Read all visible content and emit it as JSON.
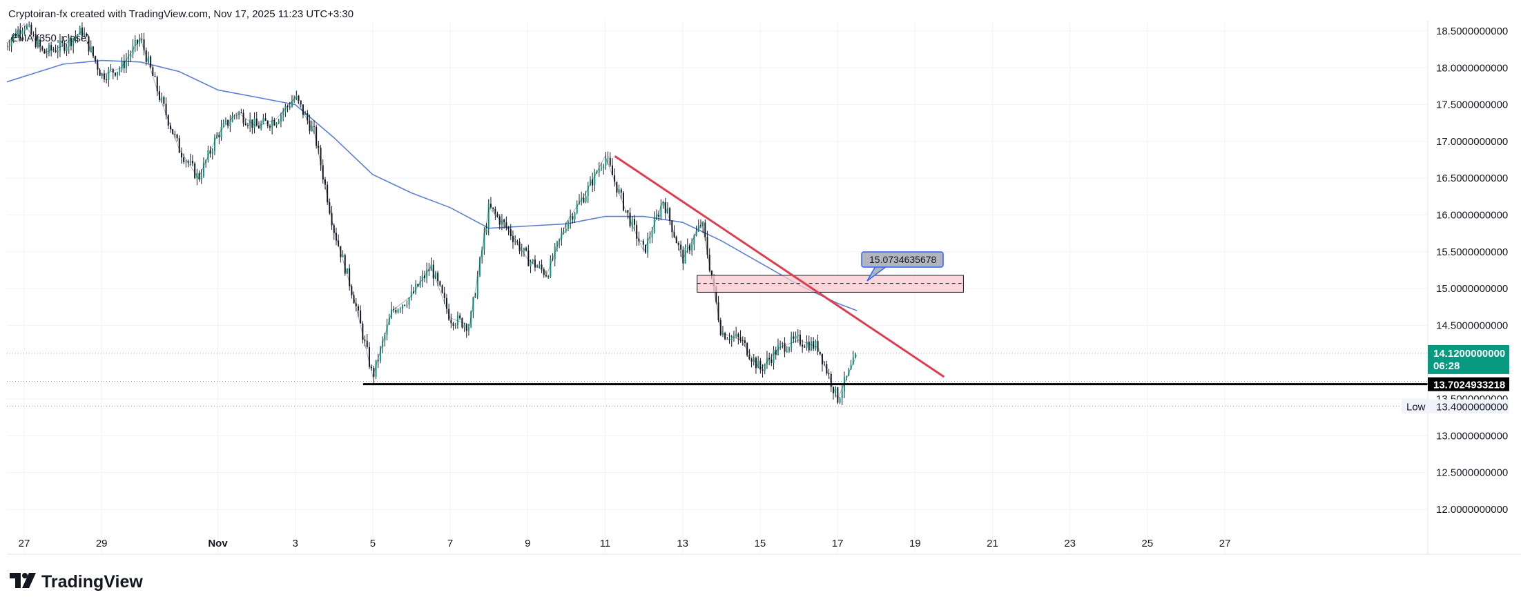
{
  "header": {
    "attribution": "Cryptoiran-fx created with TradingView.com, Nov 17, 2025 11:23 UTC+3:30",
    "indicator": "EMA (350, close)"
  },
  "brand": {
    "logo_text": "TradingView",
    "logo_icon": "tradingview-logo-icon"
  },
  "colors": {
    "price": "#131722",
    "ema": "#5b7fd1",
    "trendline": "#e03c4f",
    "zone_fill": "#f9c9cf",
    "support": "#000000",
    "current_price_tag": "#089981",
    "callout": "#b2b5be",
    "callout_border": "#2962ff"
  },
  "chart_data": {
    "type": "line",
    "title": "",
    "xlabel": "",
    "ylabel": "",
    "ylim": [
      11.75,
      18.7
    ],
    "x_ticks": [
      "27",
      "29",
      "Nov",
      "3",
      "5",
      "7",
      "9",
      "11",
      "13",
      "15",
      "17",
      "19",
      "21",
      "23",
      "25",
      "27"
    ],
    "y_ticks": [
      "18.5000000000",
      "18.0000000000",
      "17.5000000000",
      "17.0000000000",
      "16.5000000000",
      "16.0000000000",
      "15.5000000000",
      "15.0000000000",
      "14.5000000000",
      "13.5000000000",
      "13.0000000000",
      "12.5000000000",
      "12.0000000000"
    ],
    "series": [
      {
        "x": [
          "Oct 26 12:00",
          "Oct 27",
          "Oct 27 12:00",
          "Oct 28",
          "Oct 28 12:00",
          "Oct 29",
          "Oct 29 12:00",
          "Oct 30",
          "Oct 30 12:00",
          "Oct 31",
          "Oct 31 12:00",
          "Nov 1",
          "Nov 1 12:00",
          "Nov 2",
          "Nov 2 12:00",
          "Nov 3",
          "Nov 3 12:00",
          "Nov 4",
          "Nov 4 12:00",
          "Nov 5",
          "Nov 5 12:00",
          "Nov 6",
          "Nov 6 12:00",
          "Nov 7",
          "Nov 7 12:00",
          "Nov 8",
          "Nov 8 12:00",
          "Nov 9",
          "Nov 9 12:00",
          "Nov 10",
          "Nov 10 12:00",
          "Nov 11",
          "Nov 11 12:00",
          "Nov 12",
          "Nov 12 12:00",
          "Nov 13",
          "Nov 13 12:00",
          "Nov 14",
          "Nov 14 12:00",
          "Nov 15",
          "Nov 15 12:00",
          "Nov 16",
          "Nov 16 12:00",
          "Nov 17",
          "Nov 17 12:00"
        ],
        "values": [
          18.3,
          18.6,
          18.2,
          18.3,
          18.5,
          17.9,
          18.0,
          18.4,
          17.6,
          16.9,
          16.5,
          17.1,
          17.4,
          17.2,
          17.3,
          17.6,
          17.1,
          15.8,
          14.9,
          13.8,
          14.7,
          14.9,
          15.3,
          14.6,
          14.5,
          16.1,
          15.8,
          15.4,
          15.2,
          15.9,
          16.3,
          16.8,
          16.1,
          15.5,
          16.2,
          15.4,
          15.9,
          14.4,
          14.3,
          13.9,
          14.2,
          14.3,
          14.2,
          13.5,
          14.1
        ]
      },
      {
        "name": "EMA (350, close)",
        "x": [
          "Oct 26 12:00",
          "Oct 28",
          "Oct 29",
          "Oct 30",
          "Oct 31",
          "Nov 1",
          "Nov 2",
          "Nov 3",
          "Nov 4",
          "Nov 5",
          "Nov 6",
          "Nov 7",
          "Nov 8",
          "Nov 9",
          "Nov 10",
          "Nov 11",
          "Nov 12",
          "Nov 13",
          "Nov 14",
          "Nov 15",
          "Nov 16",
          "Nov 17",
          "Nov 17 12:00"
        ],
        "values": [
          17.8,
          18.05,
          18.1,
          18.08,
          17.95,
          17.7,
          17.6,
          17.5,
          17.05,
          16.55,
          16.3,
          16.1,
          15.82,
          15.85,
          15.88,
          15.98,
          15.98,
          15.9,
          15.65,
          15.35,
          15.05,
          14.8,
          14.7
        ]
      }
    ],
    "annotations": {
      "current_price": "14.1200000000",
      "countdown": "06:28",
      "support_level": "13.7024933218",
      "low_label": "Low",
      "low_value": "13.4000000000",
      "callout_value": "15.0734635678",
      "trendline": {
        "x": [
          "Nov 11 06:00",
          "Nov 19 18:00"
        ],
        "y": [
          16.8,
          13.8
        ]
      },
      "resistance_zone": {
        "x": [
          "Nov 13 09:00",
          "Nov 20 06:00"
        ],
        "y": [
          14.95,
          15.18
        ],
        "mid": 15.07
      },
      "support_line": {
        "x": [
          "Nov 4 18:00",
          "right-edge"
        ],
        "y": 13.7
      }
    }
  }
}
